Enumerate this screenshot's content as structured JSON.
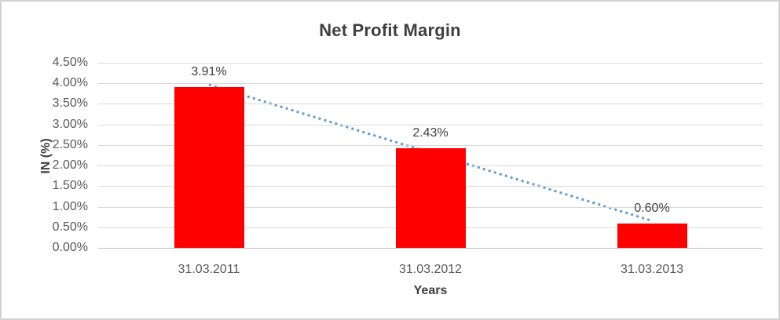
{
  "chart": {
    "title": "Net Profit Margin",
    "x_axis_title": "Years",
    "y_axis_title": "IN (%)"
  },
  "chart_data": {
    "type": "bar",
    "title": "Net Profit Margin",
    "xlabel": "Years",
    "ylabel": "IN (%)",
    "categories": [
      "31.03.2011",
      "31.03.2012",
      "31.03.2013"
    ],
    "values": [
      3.91,
      2.43,
      0.6
    ],
    "data_labels": [
      "3.91%",
      "2.43%",
      "0.60%"
    ],
    "y_tick_values": [
      0,
      0.5,
      1.0,
      1.5,
      2.0,
      2.5,
      3.0,
      3.5,
      4.0,
      4.5
    ],
    "y_tick_labels": [
      "0.00%",
      "0.50%",
      "1.00%",
      "1.50%",
      "2.00%",
      "2.50%",
      "3.00%",
      "3.50%",
      "4.00%",
      "4.50%"
    ],
    "ylim": [
      0,
      4.5
    ],
    "grid": true,
    "legend": "none",
    "bar_color": "#ff0000",
    "gridline_color": "#d9d9d9",
    "trendline": {
      "type": "linear",
      "style": "dotted",
      "color": "#5b9bd5",
      "fitted_values": [
        3.97,
        2.31,
        0.66
      ]
    }
  }
}
